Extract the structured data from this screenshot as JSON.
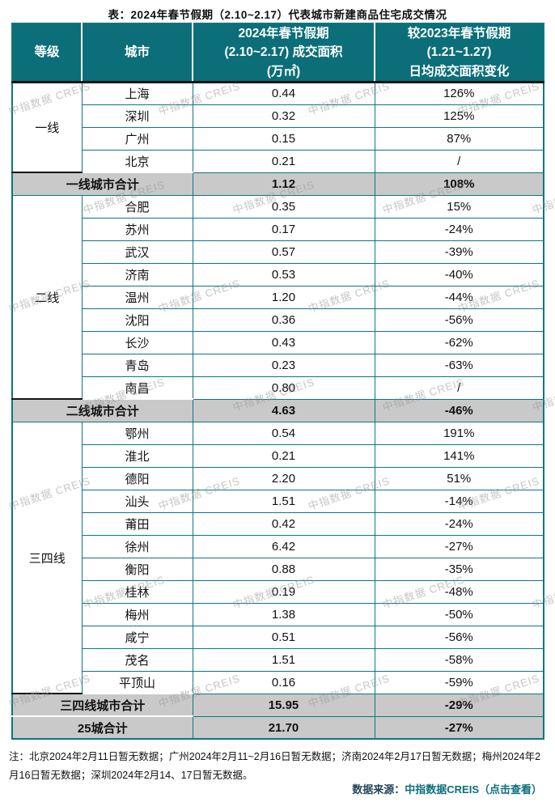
{
  "title": "表：2024年春节假期（2.10~2.17）代表城市新建商品住宅成交情况",
  "colors": {
    "header_bg": "#0b6e79",
    "border_teal": "#0e7680",
    "summary_bg": "#c9c9c9",
    "divider_dark": "#141414",
    "source_label": "#24455c",
    "source_link": "#0b6e79",
    "watermark": "#969696"
  },
  "watermark": {
    "text": "中指数据 CREIS"
  },
  "table": {
    "headers": [
      "等级",
      "城市",
      "2024年春节假期\n(2.10~2.17) 成交面积\n(万㎡)",
      "较2023年春节假期\n(1.21~1.27)\n日均成交面积变化"
    ],
    "groups": [
      {
        "tier": "一线",
        "rows": [
          {
            "city": "上海",
            "area": "0.44",
            "change": "126%"
          },
          {
            "city": "深圳",
            "area": "0.32",
            "change": "125%"
          },
          {
            "city": "广州",
            "area": "0.15",
            "change": "87%"
          },
          {
            "city": "北京",
            "area": "0.21",
            "change": "/"
          }
        ],
        "summary": {
          "label": "一线城市合计",
          "area": "1.12",
          "change": "108%"
        }
      },
      {
        "tier": "二线",
        "rows": [
          {
            "city": "合肥",
            "area": "0.35",
            "change": "15%"
          },
          {
            "city": "苏州",
            "area": "0.17",
            "change": "-24%"
          },
          {
            "city": "武汉",
            "area": "0.57",
            "change": "-39%"
          },
          {
            "city": "济南",
            "area": "0.53",
            "change": "-40%"
          },
          {
            "city": "温州",
            "area": "1.20",
            "change": "-44%"
          },
          {
            "city": "沈阳",
            "area": "0.36",
            "change": "-56%"
          },
          {
            "city": "长沙",
            "area": "0.43",
            "change": "-62%"
          },
          {
            "city": "青岛",
            "area": "0.23",
            "change": "-63%"
          },
          {
            "city": "南昌",
            "area": "0.80",
            "change": "/"
          }
        ],
        "summary": {
          "label": "二线城市合计",
          "area": "4.63",
          "change": "-46%"
        }
      },
      {
        "tier": "三四线",
        "rows": [
          {
            "city": "鄂州",
            "area": "0.54",
            "change": "191%"
          },
          {
            "city": "淮北",
            "area": "0.21",
            "change": "141%"
          },
          {
            "city": "德阳",
            "area": "2.20",
            "change": "51%"
          },
          {
            "city": "汕头",
            "area": "1.51",
            "change": "-14%"
          },
          {
            "city": "莆田",
            "area": "0.42",
            "change": "-24%"
          },
          {
            "city": "徐州",
            "area": "6.42",
            "change": "-27%"
          },
          {
            "city": "衡阳",
            "area": "0.88",
            "change": "-35%"
          },
          {
            "city": "桂林",
            "area": "0.19",
            "change": "-48%"
          },
          {
            "city": "梅州",
            "area": "1.38",
            "change": "-50%"
          },
          {
            "city": "咸宁",
            "area": "0.51",
            "change": "-56%"
          },
          {
            "city": "茂名",
            "area": "1.51",
            "change": "-58%"
          },
          {
            "city": "平顶山",
            "area": "0.16",
            "change": "-59%"
          }
        ],
        "summary": {
          "label": "三四线城市合计",
          "area": "15.95",
          "change": "-29%"
        }
      }
    ],
    "total": {
      "label": "25城合计",
      "area": "21.70",
      "change": "-27%"
    }
  },
  "notes": "注：北京2024年2月11日暂无数据；广州2024年2月11~2月16日暂无数据；济南2024年2月17日暂无数据；梅州2024年2月16日暂无数据；深圳2024年2月14、17日暂无数据。",
  "source": {
    "label": "数据来源：",
    "link": "中指数据CREIS（点击查看）"
  },
  "chart_data": {
    "type": "table",
    "title": "2024年春节假期（2.10~2.17）代表城市新建商品住宅成交情况",
    "columns": [
      "等级",
      "城市",
      "2024年春节假期(2.10~2.17)成交面积(万㎡)",
      "较2023年春节假期(1.21~1.27)日均成交面积变化"
    ],
    "rows": [
      [
        "一线",
        "上海",
        0.44,
        "126%"
      ],
      [
        "一线",
        "深圳",
        0.32,
        "125%"
      ],
      [
        "一线",
        "广州",
        0.15,
        "87%"
      ],
      [
        "一线",
        "北京",
        0.21,
        "/"
      ],
      [
        "二线",
        "合肥",
        0.35,
        "15%"
      ],
      [
        "二线",
        "苏州",
        0.17,
        "-24%"
      ],
      [
        "二线",
        "武汉",
        0.57,
        "-39%"
      ],
      [
        "二线",
        "济南",
        0.53,
        "-40%"
      ],
      [
        "二线",
        "温州",
        1.2,
        "-44%"
      ],
      [
        "二线",
        "沈阳",
        0.36,
        "-56%"
      ],
      [
        "二线",
        "长沙",
        0.43,
        "-62%"
      ],
      [
        "二线",
        "青岛",
        0.23,
        "-63%"
      ],
      [
        "二线",
        "南昌",
        0.8,
        "/"
      ],
      [
        "三四线",
        "鄂州",
        0.54,
        "191%"
      ],
      [
        "三四线",
        "淮北",
        0.21,
        "141%"
      ],
      [
        "三四线",
        "德阳",
        2.2,
        "51%"
      ],
      [
        "三四线",
        "汕头",
        1.51,
        "-14%"
      ],
      [
        "三四线",
        "莆田",
        0.42,
        "-24%"
      ],
      [
        "三四线",
        "徐州",
        6.42,
        "-27%"
      ],
      [
        "三四线",
        "衡阳",
        0.88,
        "-35%"
      ],
      [
        "三四线",
        "桂林",
        0.19,
        "-48%"
      ],
      [
        "三四线",
        "梅州",
        1.38,
        "-50%"
      ],
      [
        "三四线",
        "咸宁",
        0.51,
        "-56%"
      ],
      [
        "三四线",
        "茂名",
        1.51,
        "-58%"
      ],
      [
        "三四线",
        "平顶山",
        0.16,
        "-59%"
      ]
    ],
    "summary_rows": [
      [
        "一线城市合计",
        1.12,
        "108%"
      ],
      [
        "二线城市合计",
        4.63,
        "-46%"
      ],
      [
        "三四线城市合计",
        15.95,
        "-29%"
      ],
      [
        "25城合计",
        21.7,
        "-27%"
      ]
    ]
  }
}
